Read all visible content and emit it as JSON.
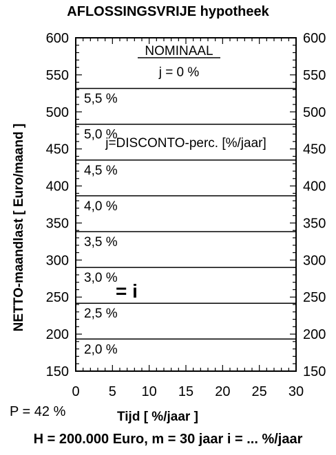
{
  "chart_data": {
    "type": "line",
    "title": "AFLOSSINGSVRIJE hypotheek",
    "xlabel": "Tijd [ %/jaar ]",
    "ylabel": "NETTO-maandlast [ Euro/maand ]",
    "xlim": [
      0,
      30
    ],
    "ylim": [
      150,
      600
    ],
    "x_ticks": [
      0,
      5,
      10,
      15,
      20,
      25,
      30
    ],
    "y_ticks": [
      150,
      200,
      250,
      300,
      350,
      400,
      450,
      500,
      550,
      600
    ],
    "y_ticks_right": true,
    "grid": false,
    "series": [
      {
        "name": "2,0 %",
        "x": [
          0,
          30
        ],
        "y": [
          193.33,
          193.33
        ]
      },
      {
        "name": "2,5 %",
        "x": [
          0,
          30
        ],
        "y": [
          241.67,
          241.67
        ]
      },
      {
        "name": "3,0 %",
        "x": [
          0,
          30
        ],
        "y": [
          290,
          290
        ]
      },
      {
        "name": "3,5 %",
        "x": [
          0,
          30
        ],
        "y": [
          338.33,
          338.33
        ]
      },
      {
        "name": "4,0 %",
        "x": [
          0,
          30
        ],
        "y": [
          386.67,
          386.67
        ]
      },
      {
        "name": "4,5 %",
        "x": [
          0,
          30
        ],
        "y": [
          435,
          435
        ]
      },
      {
        "name": "5,0 %",
        "x": [
          0,
          30
        ],
        "y": [
          483.33,
          483.33
        ]
      },
      {
        "name": "5,5 %",
        "x": [
          0,
          30
        ],
        "y": [
          531.67,
          531.67
        ]
      }
    ],
    "annotations": {
      "nominal": "NOMINAAL",
      "j_zero": "j = 0 %",
      "discount": "j=DISCONTO-perc. [%/jaar]",
      "equals_i": "= i"
    },
    "notes": {
      "p_value": "P = 42 %",
      "formula": "H = 200.000 Euro, m = 30 jaar  i = ... %/jaar"
    }
  }
}
